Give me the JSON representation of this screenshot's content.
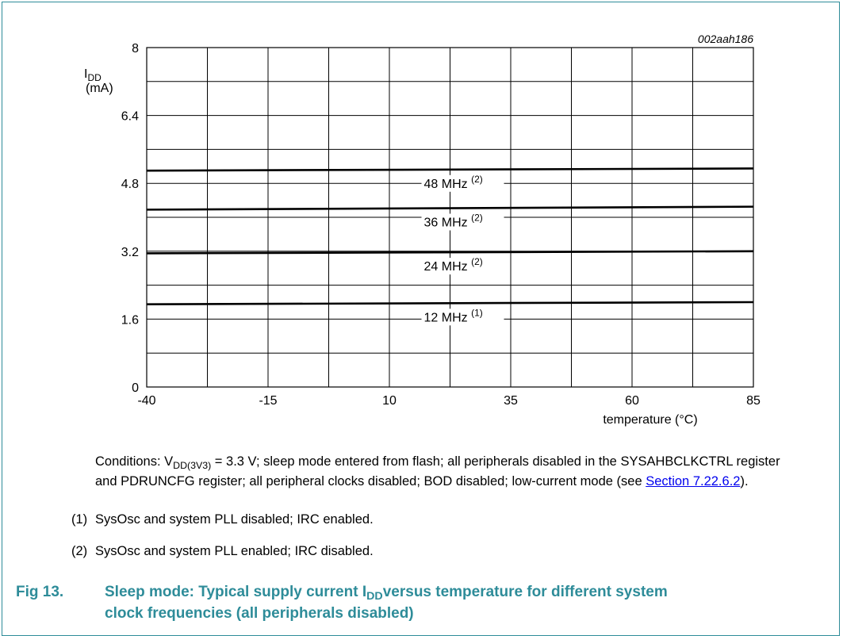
{
  "chart_data": {
    "type": "line",
    "id_label": "002aah186",
    "ylabel_main": "I",
    "ylabel_sub": "DD",
    "ylabel_unit": "(mA)",
    "xlabel": "temperature (°C)",
    "xlim": [
      -40,
      85
    ],
    "ylim": [
      0,
      8
    ],
    "x_ticks": [
      -40,
      -15,
      10,
      35,
      60,
      85
    ],
    "y_ticks": [
      0,
      1.6,
      3.2,
      4.8,
      6.4,
      8
    ],
    "x_grid_step": 12.5,
    "y_grid_step": 0.8,
    "series": [
      {
        "name": "48 MHz",
        "note": "(2)",
        "x": [
          -40,
          85
        ],
        "y": [
          5.1,
          5.15
        ],
        "label_x": 22.5
      },
      {
        "name": "36 MHz",
        "note": "(2)",
        "x": [
          -40,
          85
        ],
        "y": [
          4.18,
          4.25
        ],
        "label_x": 22.5
      },
      {
        "name": "24 MHz",
        "note": "(2)",
        "x": [
          -40,
          85
        ],
        "y": [
          3.15,
          3.2
        ],
        "label_x": 22.5
      },
      {
        "name": "12 MHz",
        "note": "(1)",
        "x": [
          -40,
          85
        ],
        "y": [
          1.95,
          2.0
        ],
        "label_x": 22.5
      }
    ]
  },
  "conditions": {
    "prefix": "Conditions: V",
    "sub": "DD(3V3)",
    "rest": " = 3.3 V; sleep mode entered from flash; all peripherals disabled in the SYSAHBCLKCTRL register and PDRUNCFG register; all peripheral clocks disabled; BOD disabled; low-current mode (see ",
    "link": "Section 7.22.6.2",
    "suffix": ")."
  },
  "notes": [
    {
      "num": "(1)",
      "text": "SysOsc and system PLL disabled; IRC enabled."
    },
    {
      "num": "(2)",
      "text": "SysOsc and system PLL enabled; IRC disabled."
    }
  ],
  "caption": {
    "fig": "Fig 13.",
    "part1": "Sleep mode: Typical supply current I",
    "sub": "DD",
    "part2": "versus temperature for different system",
    "line2": "clock frequencies (all peripherals disabled)"
  }
}
